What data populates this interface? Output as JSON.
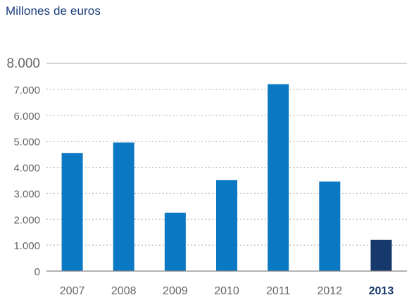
{
  "colors": {
    "title": "#1a3d7c",
    "bar": "#0a78c2",
    "bar_highlight": "#17386a",
    "axis_text": "#666666",
    "grid": "#aaaaaa",
    "axis_line": "#888888"
  },
  "chart_data": {
    "type": "bar",
    "title": "Millones de euros",
    "categories": [
      "2007",
      "2008",
      "2009",
      "2010",
      "2011",
      "2012",
      "2013"
    ],
    "values": [
      4550,
      4950,
      2250,
      3500,
      7200,
      3450,
      1200
    ],
    "highlight_category": "2013",
    "ylim": [
      0,
      8000
    ],
    "yticks": [
      0,
      1000,
      2000,
      3000,
      4000,
      5000,
      6000,
      7000,
      8000
    ],
    "ytick_labels": [
      "0",
      "1.000",
      "2.000",
      "3.000",
      "4.000",
      "5.000",
      "6.000",
      "7.000",
      "8.000"
    ],
    "grid": true,
    "grid_style": "dotted",
    "legend": "none"
  }
}
